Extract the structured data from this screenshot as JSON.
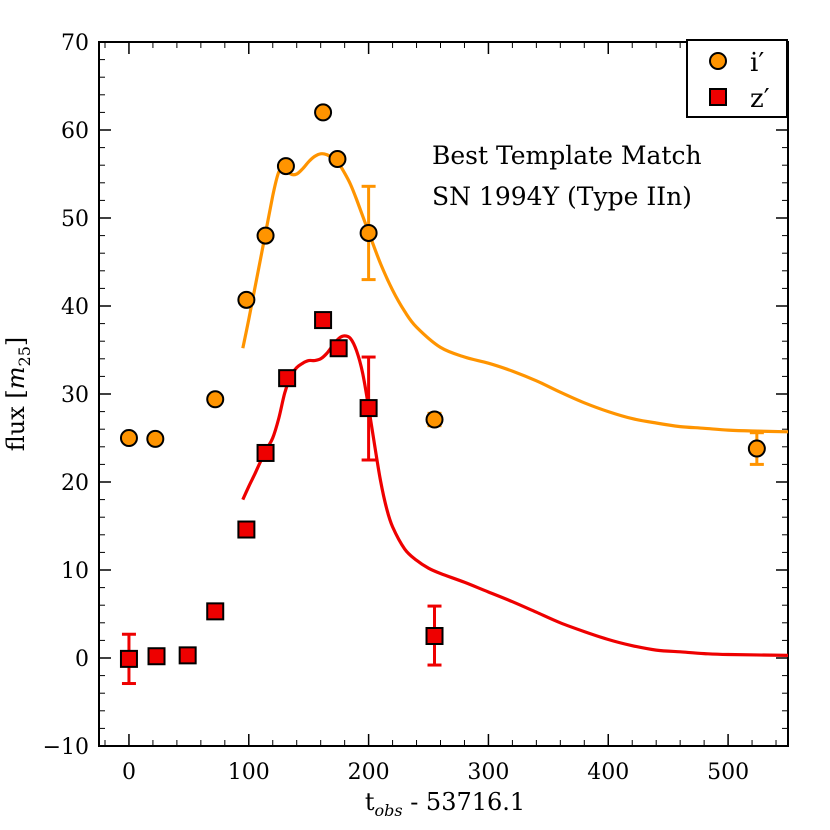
{
  "chart_data": {
    "type": "scatter",
    "title": "",
    "xlabel": "t",
    "xlabel_sub": "obs",
    "xlabel_suffix": " - 53716.1",
    "ylabel": "flux [",
    "ylabel_m": "m",
    "ylabel_sub": "25",
    "ylabel_close": "]",
    "xlim": [
      -25,
      550
    ],
    "ylim": [
      -10,
      70
    ],
    "x_ticks": [
      0,
      100,
      200,
      300,
      400,
      500
    ],
    "y_ticks": [
      -10,
      0,
      10,
      20,
      30,
      40,
      50,
      60,
      70
    ],
    "x_tick_labels": [
      "0",
      "100",
      "200",
      "300",
      "400",
      "500"
    ],
    "y_tick_labels": [
      "−10",
      "0",
      "10",
      "20",
      "30",
      "40",
      "50",
      "60",
      "70"
    ],
    "legend_position": "top-right",
    "annotations": [
      "Best Template Match",
      "SN 1994Y (Type IIn)"
    ],
    "series": [
      {
        "name": "i′",
        "marker": "circle",
        "color": "#ff9400",
        "x": [
          0,
          22,
          72,
          98,
          114,
          131,
          162,
          174,
          200,
          255,
          524
        ],
        "y": [
          25.0,
          24.9,
          29.4,
          40.7,
          48.0,
          55.9,
          62.0,
          56.7,
          48.3,
          27.1,
          23.8
        ],
        "errors": [
          {
            "x": 200,
            "low": 43.0,
            "high": 53.6
          },
          {
            "x": 255,
            "low": 26.4,
            "high": 27.8
          },
          {
            "x": 524,
            "low": 22.0,
            "high": 25.6
          }
        ]
      },
      {
        "name": "z′",
        "marker": "square",
        "color": "#ee0000",
        "x": [
          0,
          23,
          49,
          72,
          98,
          114,
          132,
          162,
          175,
          200,
          255
        ],
        "y": [
          -0.1,
          0.2,
          0.3,
          5.3,
          14.6,
          23.3,
          31.8,
          38.4,
          35.2,
          28.4,
          2.5
        ],
        "errors": [
          {
            "x": 0,
            "low": -2.9,
            "high": 2.7
          },
          {
            "x": 200,
            "low": 22.5,
            "high": 34.2
          },
          {
            "x": 255,
            "low": -0.8,
            "high": 5.9
          }
        ]
      }
    ],
    "template_curves": [
      {
        "name": "i-template",
        "color": "#ff9400",
        "x": [
          95,
          100,
          110,
          120,
          125,
          130,
          135,
          140,
          145,
          150,
          155,
          160,
          165,
          170,
          175,
          180,
          185,
          190,
          200,
          210,
          220,
          230,
          240,
          260,
          280,
          300,
          320,
          340,
          360,
          380,
          400,
          420,
          440,
          460,
          480,
          500,
          520,
          550
        ],
        "y": [
          35.2,
          38.5,
          45.5,
          52.5,
          55.2,
          55.8,
          55.0,
          55.0,
          55.6,
          56.4,
          57.0,
          57.3,
          57.2,
          56.8,
          56.2,
          55.1,
          53.8,
          52.1,
          48.4,
          44.8,
          41.8,
          39.4,
          37.6,
          35.3,
          34.2,
          33.5,
          32.6,
          31.5,
          30.2,
          29.0,
          28.0,
          27.2,
          26.7,
          26.3,
          26.1,
          25.9,
          25.8,
          25.7
        ]
      },
      {
        "name": "z-template",
        "color": "#ee0000",
        "x": [
          95,
          100,
          105,
          110,
          115,
          120,
          125,
          130,
          135,
          140,
          145,
          150,
          155,
          160,
          165,
          170,
          175,
          180,
          185,
          190,
          195,
          200,
          205,
          210,
          215,
          220,
          230,
          240,
          250,
          260,
          280,
          300,
          320,
          340,
          360,
          380,
          400,
          420,
          440,
          460,
          480,
          500,
          550
        ],
        "y": [
          18.0,
          19.5,
          20.9,
          22.4,
          23.8,
          25.0,
          27.2,
          30.1,
          32.0,
          33.0,
          33.5,
          33.8,
          33.8,
          34.0,
          34.6,
          35.5,
          36.3,
          36.6,
          36.3,
          34.9,
          32.4,
          28.5,
          24.2,
          20.1,
          17.0,
          14.9,
          12.4,
          11.1,
          10.2,
          9.6,
          8.6,
          7.5,
          6.4,
          5.2,
          4.0,
          3.0,
          2.1,
          1.4,
          0.9,
          0.7,
          0.5,
          0.4,
          0.3
        ]
      }
    ]
  }
}
